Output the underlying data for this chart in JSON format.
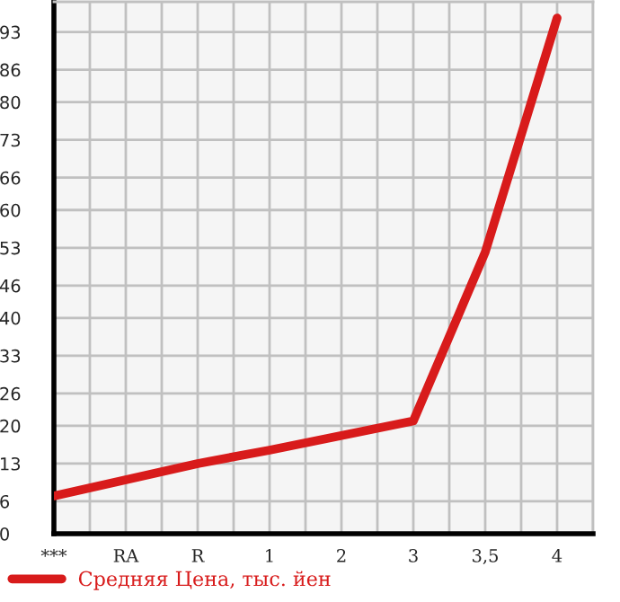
{
  "chart_data": {
    "type": "line",
    "categories": [
      "***",
      "RA",
      "R",
      "1",
      "2",
      "3",
      "3,5",
      "4"
    ],
    "series": [
      {
        "name": "Средняя Цена, тыс. йен",
        "color": "#d81b1b",
        "values": [
          7,
          10,
          13,
          15.5,
          18.2,
          20.9,
          52.2,
          95.6
        ]
      }
    ],
    "ylim": [
      0,
      98.6
    ],
    "yticks": [
      0,
      6,
      13,
      20,
      26,
      33,
      40,
      46,
      53,
      60,
      66,
      73,
      80,
      86,
      93
    ],
    "grid": true,
    "legend": "bottom",
    "marker": "none",
    "line_style": "solid"
  }
}
